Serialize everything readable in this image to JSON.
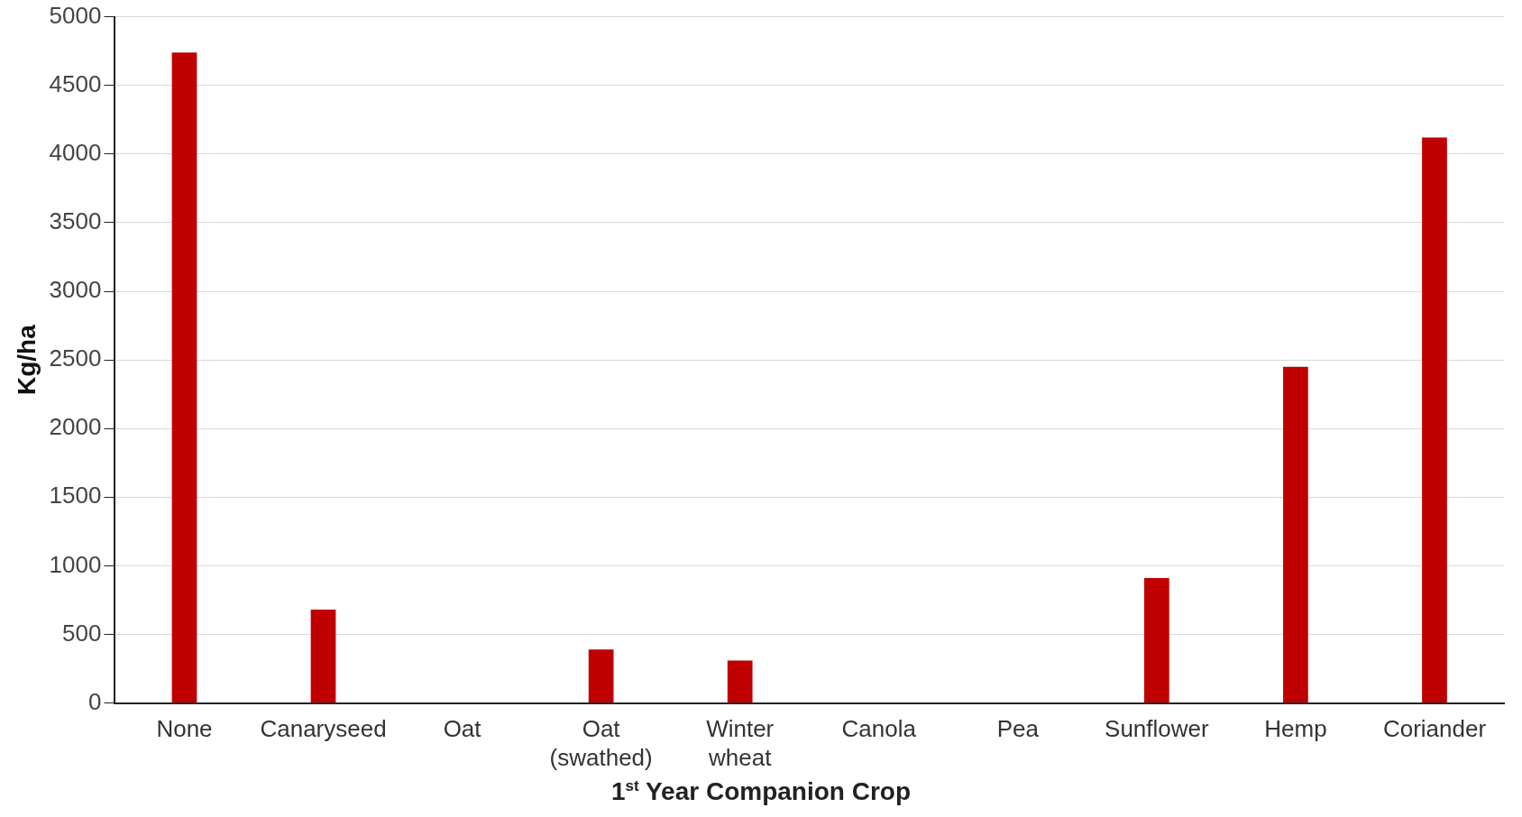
{
  "chart_data": {
    "type": "bar",
    "xlabel": "1$^{st}$ Year Companion Crop",
    "ylabel": "Kg/ha",
    "categories": [
      "None",
      "Canaryseed",
      "Oat",
      "Oat (swathed)",
      "Winter wheat",
      "Canola",
      "Pea",
      "Sunflower",
      "Hemp",
      "Coriander"
    ],
    "values": [
      4740,
      680,
      0,
      390,
      310,
      0,
      0,
      910,
      2450,
      4120
    ],
    "color": "#c00000",
    "ylim": [
      0,
      5000
    ],
    "yticks": [
      0,
      500,
      1000,
      1500,
      2000,
      2500,
      3000,
      3500,
      4000,
      4500,
      5000
    ],
    "grid": "y",
    "legend": false
  }
}
